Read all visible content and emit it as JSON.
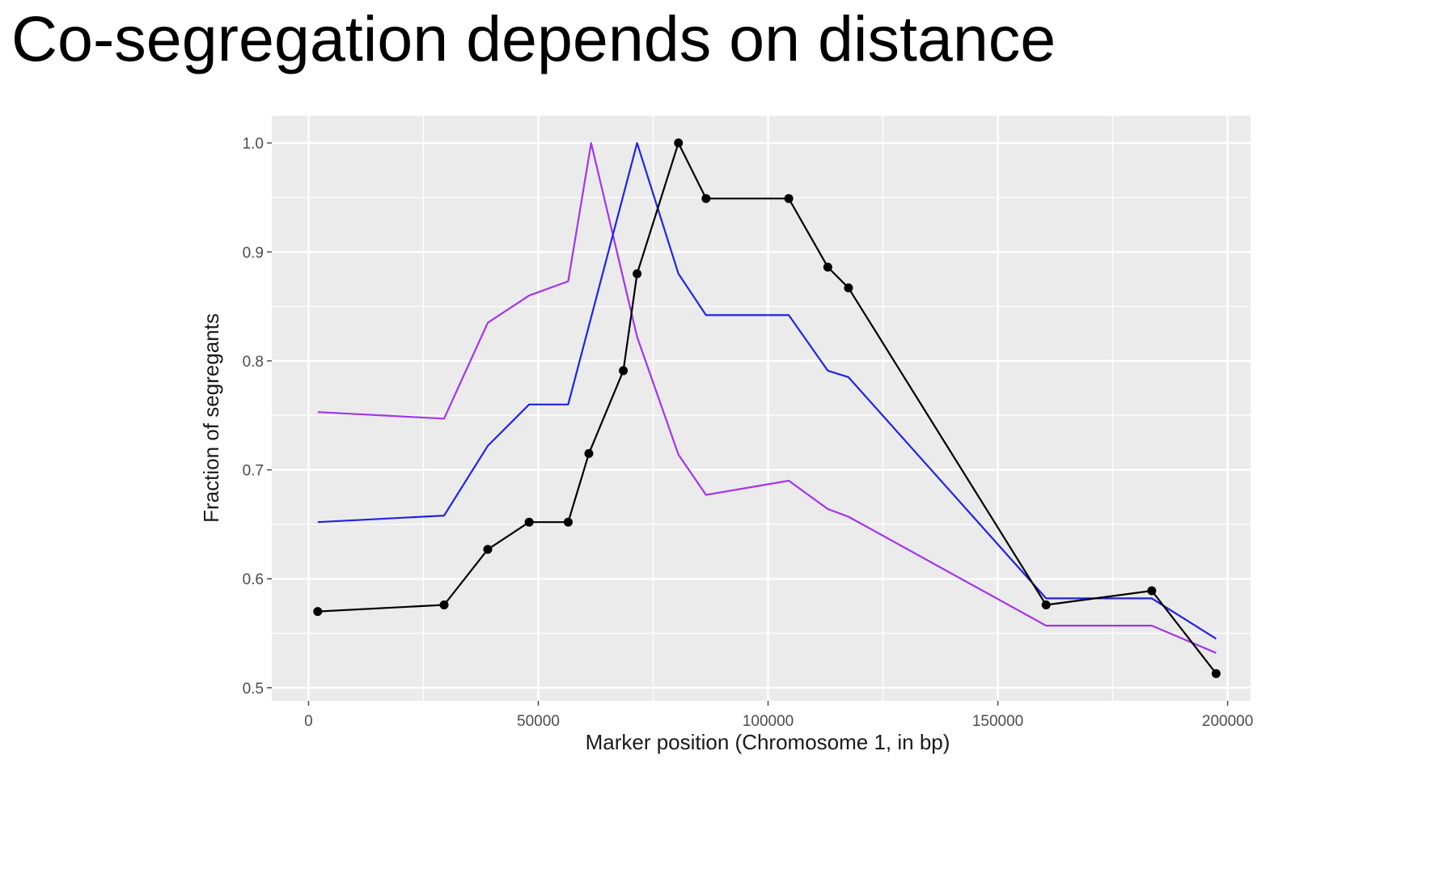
{
  "title": "Co-segregation depends on distance",
  "chart_data": {
    "type": "line",
    "xlabel": "Marker position (Chromosome 1, in bp)",
    "ylabel": "Fraction of segregants",
    "xlim": [
      -8000,
      205000
    ],
    "ylim": [
      0.488,
      1.025
    ],
    "x_ticks": [
      0,
      50000,
      100000,
      150000,
      200000
    ],
    "x_tick_labels": [
      "0",
      "50000",
      "100000",
      "150000",
      "200000"
    ],
    "y_ticks": [
      0.5,
      0.6,
      0.7,
      0.8,
      0.9,
      1.0
    ],
    "y_tick_labels": [
      "0.5",
      "0.6",
      "0.7",
      "0.8",
      "0.9",
      "1.0"
    ],
    "grid": true,
    "legend": "none",
    "colors": {
      "panel": "#ebebeb",
      "grid": "#ffffff",
      "axis": "#4d4d4d"
    },
    "series": [
      {
        "color": "#a335ec",
        "markers": false,
        "x": [
          2000,
          29500,
          39000,
          48000,
          56500,
          61500,
          71500,
          80500,
          86500,
          104500,
          113000,
          117500,
          160500,
          183500,
          197500
        ],
        "y": [
          0.753,
          0.747,
          0.835,
          0.86,
          0.873,
          1.0,
          0.822,
          0.714,
          0.677,
          0.69,
          0.664,
          0.657,
          0.557,
          0.557,
          0.532
        ]
      },
      {
        "color": "#2222e6",
        "markers": false,
        "x": [
          2000,
          29500,
          39000,
          48000,
          56500,
          71500,
          80500,
          86500,
          104500,
          113000,
          117500,
          160500,
          183500,
          197500
        ],
        "y": [
          0.652,
          0.658,
          0.722,
          0.76,
          0.76,
          1.0,
          0.88,
          0.842,
          0.842,
          0.791,
          0.785,
          0.582,
          0.582,
          0.545
        ]
      },
      {
        "color": "#000000",
        "markers": true,
        "x": [
          2000,
          29500,
          39000,
          48000,
          56500,
          61000,
          68500,
          71500,
          80500,
          86500,
          104500,
          113000,
          117500,
          160500,
          183500,
          197500
        ],
        "y": [
          0.57,
          0.576,
          0.627,
          0.652,
          0.652,
          0.715,
          0.791,
          0.88,
          1.0,
          0.949,
          0.949,
          0.886,
          0.867,
          0.576,
          0.589,
          0.513
        ]
      }
    ]
  }
}
